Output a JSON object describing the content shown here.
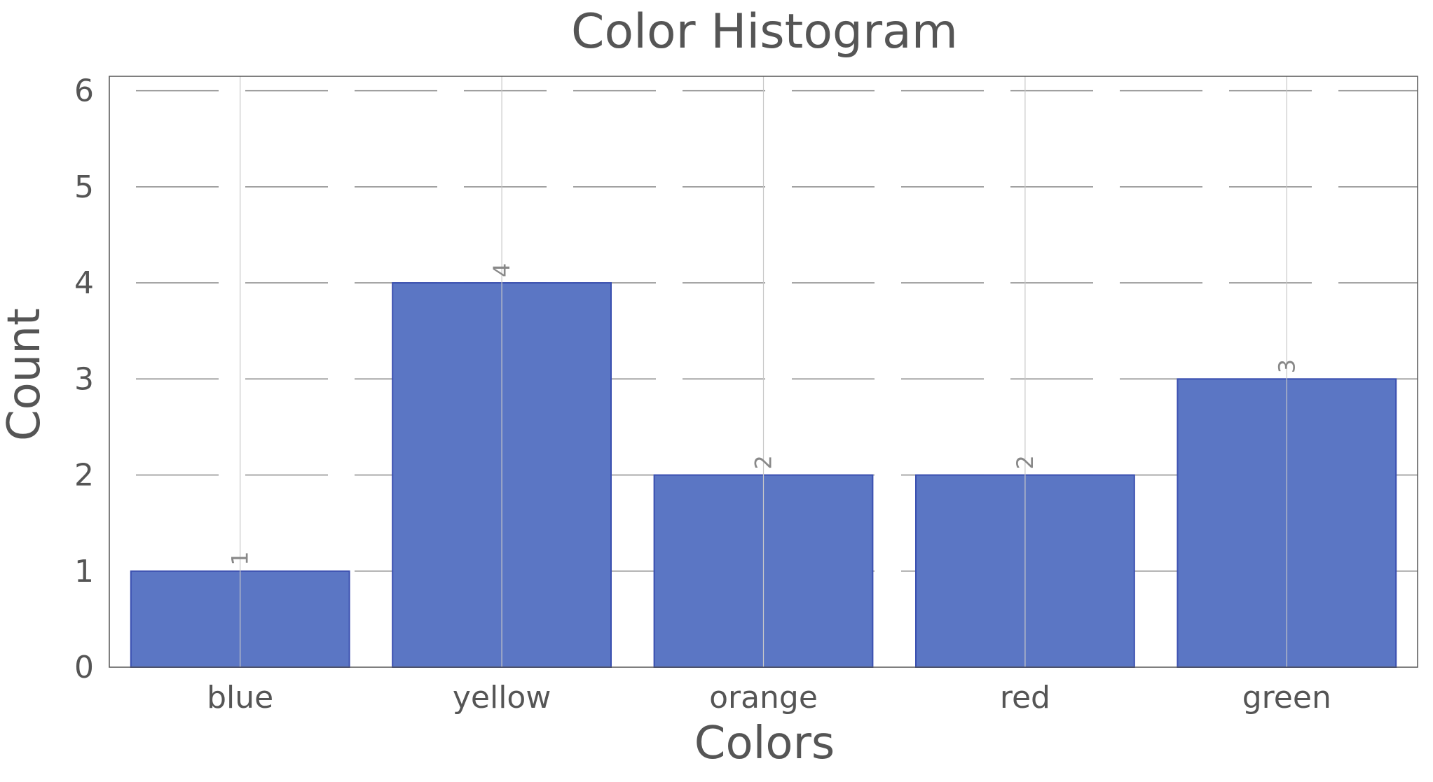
{
  "chart_data": {
    "type": "bar",
    "title": "Color Histogram",
    "xlabel": "Colors",
    "ylabel": "Count",
    "categories": [
      "blue",
      "yellow",
      "orange",
      "red",
      "green"
    ],
    "values": [
      1,
      4,
      2,
      2,
      3
    ],
    "data_labels": [
      "1",
      "4",
      "2",
      "2",
      "3"
    ],
    "ylim": [
      0,
      6.15
    ],
    "yticks": [
      0,
      1,
      2,
      3,
      4,
      5,
      6
    ],
    "ytick_labels": [
      "0",
      "1",
      "2",
      "3",
      "4",
      "5",
      "6"
    ],
    "grid": true,
    "bar_color": "#5b76c4",
    "bar_edge_color": "#3a4fb0",
    "text_color": "#555555",
    "data_label_color": "#888888"
  }
}
